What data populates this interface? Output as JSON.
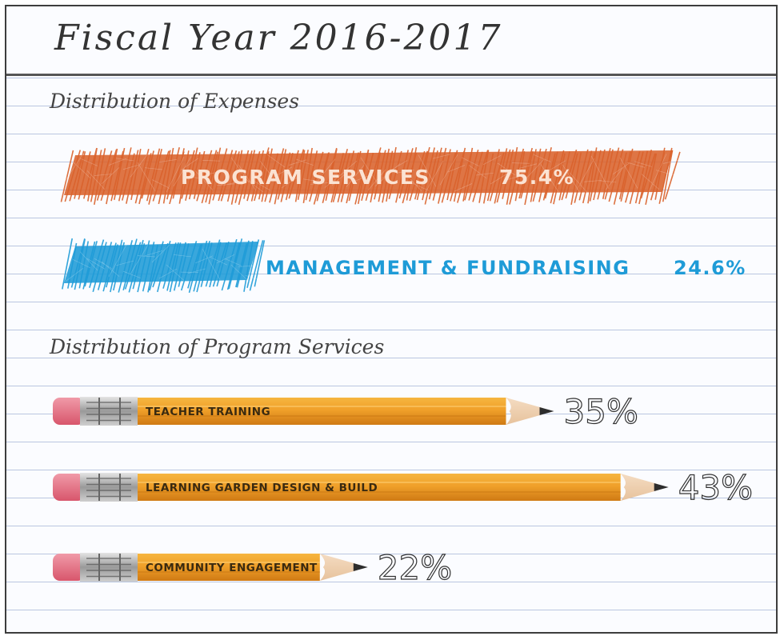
{
  "title": "Fiscal Year 2016-2017",
  "colors": {
    "program": "#d9622b",
    "management": "#1e9bd7",
    "pencil": "#f0a32a"
  },
  "chart_data": [
    {
      "type": "bar",
      "title": "Distribution of Expenses",
      "unit": "%",
      "categories": [
        "PROGRAM SERVICES",
        "MANAGEMENT & FUNDRAISING"
      ],
      "values": [
        75.4,
        24.6
      ],
      "labels": [
        "75.4%",
        "24.6%"
      ]
    },
    {
      "type": "bar",
      "title": "Distribution of Program Services",
      "unit": "%",
      "categories": [
        "TEACHER TRAINING",
        "LEARNING GARDEN DESIGN & BUILD",
        "COMMUNITY ENGAGEMENT"
      ],
      "values": [
        35,
        43,
        22
      ],
      "labels": [
        "35%",
        "43%",
        "22%"
      ]
    }
  ]
}
